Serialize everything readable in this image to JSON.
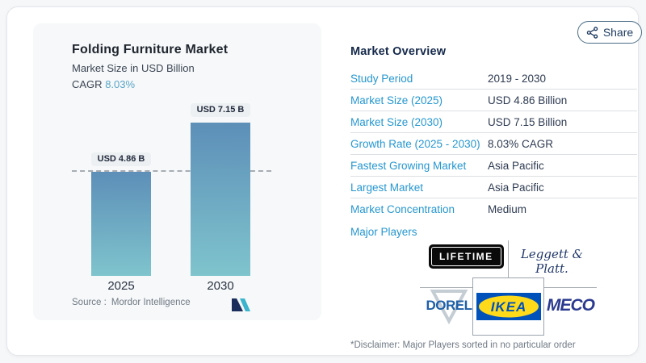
{
  "header": {
    "share_label": "Share"
  },
  "chart_panel": {
    "title": "Folding Furniture Market",
    "subtitle": "Market Size in USD Billion",
    "cagr_label": "CAGR",
    "cagr_value": "8.03%",
    "source_label": "Source :",
    "source_name": "Mordor Intelligence"
  },
  "chart_data": {
    "type": "bar",
    "title": "Folding Furniture Market",
    "ylabel": "Market Size in USD Billion",
    "categories": [
      "2025",
      "2030"
    ],
    "values": [
      4.86,
      7.15
    ],
    "bar_labels": [
      "USD 4.86 B",
      "USD 7.15 B"
    ],
    "ylim": [
      0,
      8.2
    ],
    "reference_line": 4.86,
    "grid": false,
    "legend": "none",
    "bar_color_top": "#5d8fb8",
    "bar_color_bottom": "#7fc4cd"
  },
  "overview": {
    "heading": "Market Overview",
    "rows": [
      {
        "label": "Study Period",
        "value": "2019 - 2030"
      },
      {
        "label": "Market Size (2025)",
        "value": "USD 4.86 Billion"
      },
      {
        "label": "Market Size (2030)",
        "value": "USD 7.15 Billion"
      },
      {
        "label": "Growth Rate (2025 - 2030)",
        "value": "8.03% CAGR"
      },
      {
        "label": "Fastest Growing Market",
        "value": "Asia Pacific"
      },
      {
        "label": "Largest Market",
        "value": "Asia Pacific"
      },
      {
        "label": "Market Concentration",
        "value": "Medium"
      }
    ],
    "major_players_label": "Major Players",
    "major_players": [
      "LIFETIME",
      "Leggett & Platt.",
      "DOREL",
      "IKEA",
      "MECO"
    ],
    "disclaimer": "*Disclaimer: Major Players sorted in no particular order"
  },
  "colors": {
    "accent_blue": "#2697d0",
    "navy_text": "#15294b",
    "cagr_teal": "#5aa6c8",
    "panel_bg": "#f6f8f9"
  }
}
